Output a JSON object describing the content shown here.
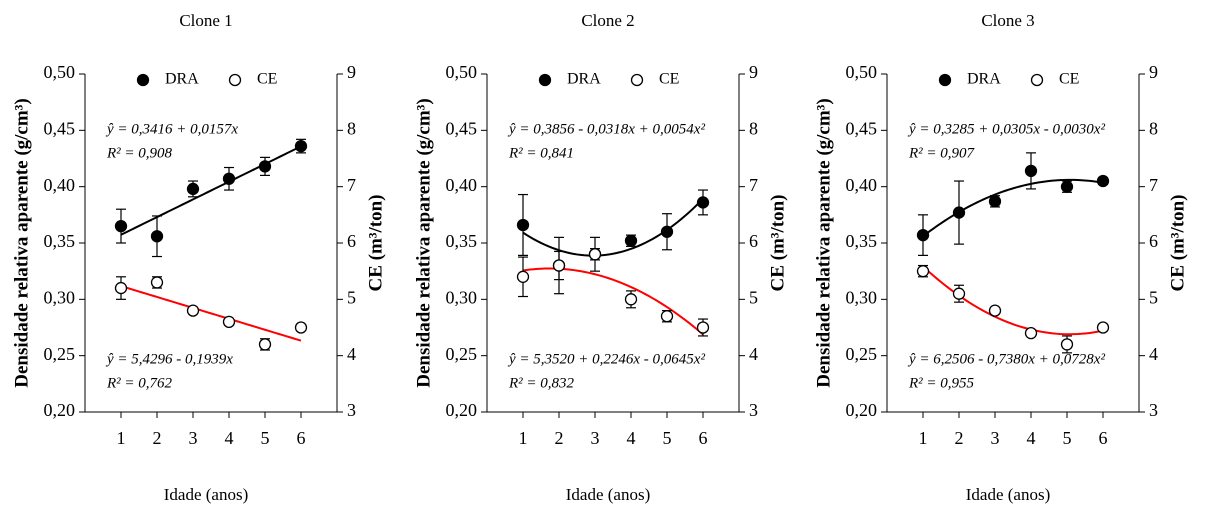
{
  "chart_data": [
    {
      "type": "scatter",
      "title": "Clone 1",
      "x_label": "Idade (anos)",
      "y_label": "Densidade relativa aparente (g/cm³)",
      "y2_label": "CE (m³/ton)",
      "x": [
        1,
        2,
        3,
        4,
        5,
        6
      ],
      "xlim": [
        0,
        7
      ],
      "xticks": [
        1,
        2,
        3,
        4,
        5,
        6
      ],
      "ylim": [
        0.2,
        0.5
      ],
      "yticks": [
        {
          "value": 0.2,
          "label": "0,20"
        },
        {
          "value": 0.25,
          "label": "0,25"
        },
        {
          "value": 0.3,
          "label": "0,30"
        },
        {
          "value": 0.35,
          "label": "0,35"
        },
        {
          "value": 0.4,
          "label": "0,40"
        },
        {
          "value": 0.45,
          "label": "0,45"
        },
        {
          "value": 0.5,
          "label": "0,50"
        }
      ],
      "y2lim": [
        3,
        9
      ],
      "y2ticks": [
        3,
        4,
        5,
        6,
        7,
        8,
        9
      ],
      "series": [
        {
          "name": "DRA",
          "color": "#000000",
          "marker_fill": "#000000",
          "line_color": "#000000",
          "values": [
            0.365,
            0.356,
            0.398,
            0.407,
            0.418,
            0.436
          ],
          "errors": [
            0.015,
            0.018,
            0.007,
            0.01,
            0.008,
            0.006
          ],
          "fit": [
            0.3416,
            0.0157
          ],
          "equation": "ŷ = 0,3416 + 0,0157x",
          "r2": "R² = 0,908"
        },
        {
          "name": "CE",
          "axis": "y2",
          "color": "#000000",
          "marker_fill": "#ffffff",
          "line_color": "#ff0000",
          "values": [
            5.2,
            5.3,
            4.8,
            4.6,
            4.2,
            4.5
          ],
          "errors": [
            0.2,
            0.1,
            0.05,
            0.05,
            0.1,
            0.05
          ],
          "fit": [
            5.4296,
            -0.1939
          ],
          "equation": "ŷ = 5,4296 - 0,1939x",
          "r2": "R² = 0,762"
        }
      ]
    },
    {
      "type": "scatter",
      "title": "Clone 2",
      "x_label": "Idade (anos)",
      "y_label": "Densidade relativa aparente (g/cm³)",
      "y2_label": "CE (m³/ton)",
      "x": [
        1,
        2,
        3,
        4,
        5,
        6
      ],
      "xlim": [
        0,
        7
      ],
      "xticks": [
        1,
        2,
        3,
        4,
        5,
        6
      ],
      "ylim": [
        0.2,
        0.5
      ],
      "yticks": [
        {
          "value": 0.2,
          "label": "0,20"
        },
        {
          "value": 0.25,
          "label": "0,25"
        },
        {
          "value": 0.3,
          "label": "0,30"
        },
        {
          "value": 0.35,
          "label": "0,35"
        },
        {
          "value": 0.4,
          "label": "0,40"
        },
        {
          "value": 0.45,
          "label": "0,45"
        },
        {
          "value": 0.5,
          "label": "0,50"
        }
      ],
      "y2lim": [
        3,
        9
      ],
      "y2ticks": [
        3,
        4,
        5,
        6,
        7,
        8,
        9
      ],
      "series": [
        {
          "name": "DRA",
          "color": "#000000",
          "marker_fill": "#000000",
          "line_color": "#000000",
          "values": [
            0.366,
            0.33,
            0.34,
            0.352,
            0.36,
            0.386
          ],
          "errors": [
            0.027,
            0.025,
            0.015,
            0.005,
            0.016,
            0.011
          ],
          "fit": [
            0.3856,
            -0.0318,
            0.0054
          ],
          "equation": "ŷ = 0,3856 - 0,0318x + 0,0054x²",
          "r2": "R² = 0,841"
        },
        {
          "name": "CE",
          "axis": "y2",
          "color": "#000000",
          "marker_fill": "#ffffff",
          "line_color": "#ff0000",
          "values": [
            5.4,
            5.6,
            5.8,
            5.0,
            4.7,
            4.5
          ],
          "errors": [
            0.35,
            0.25,
            0.1,
            0.15,
            0.1,
            0.15
          ],
          "fit": [
            5.352,
            0.2246,
            -0.0645
          ],
          "equation": "ŷ = 5,3520 + 0,2246x - 0,0645x²",
          "r2": "R² = 0,832"
        }
      ]
    },
    {
      "type": "scatter",
      "title": "Clone 3",
      "x_label": "Idade (anos)",
      "y_label": "Densidade relativa aparente (g/cm³)",
      "y2_label": "CE (m³/ton)",
      "x": [
        1,
        2,
        3,
        4,
        5,
        6
      ],
      "xlim": [
        0,
        7
      ],
      "xticks": [
        1,
        2,
        3,
        4,
        5,
        6
      ],
      "ylim": [
        0.2,
        0.5
      ],
      "yticks": [
        {
          "value": 0.2,
          "label": "0,20"
        },
        {
          "value": 0.25,
          "label": "0,25"
        },
        {
          "value": 0.3,
          "label": "0,30"
        },
        {
          "value": 0.35,
          "label": "0,35"
        },
        {
          "value": 0.4,
          "label": "0,40"
        },
        {
          "value": 0.45,
          "label": "0,45"
        },
        {
          "value": 0.5,
          "label": "0,50"
        }
      ],
      "y2lim": [
        3,
        9
      ],
      "y2ticks": [
        3,
        4,
        5,
        6,
        7,
        8,
        9
      ],
      "series": [
        {
          "name": "DRA",
          "color": "#000000",
          "marker_fill": "#000000",
          "line_color": "#000000",
          "values": [
            0.357,
            0.377,
            0.387,
            0.414,
            0.4,
            0.405
          ],
          "errors": [
            0.018,
            0.028,
            0.005,
            0.016,
            0.005,
            0.003
          ],
          "fit": [
            0.3285,
            0.0305,
            -0.003
          ],
          "equation": "ŷ = 0,3285 + 0,0305x - 0,0030x²",
          "r2": "R² = 0,907"
        },
        {
          "name": "CE",
          "axis": "y2",
          "color": "#000000",
          "marker_fill": "#ffffff",
          "line_color": "#ff0000",
          "values": [
            5.5,
            5.1,
            4.8,
            4.4,
            4.2,
            4.5
          ],
          "errors": [
            0.1,
            0.15,
            0.05,
            0.05,
            0.15,
            0.05
          ],
          "fit": [
            6.2506,
            -0.738,
            0.0728
          ],
          "equation": "ŷ = 6,2506 - 0,7380x + 0,0728x²",
          "r2": "R² = 0,955"
        }
      ]
    }
  ]
}
